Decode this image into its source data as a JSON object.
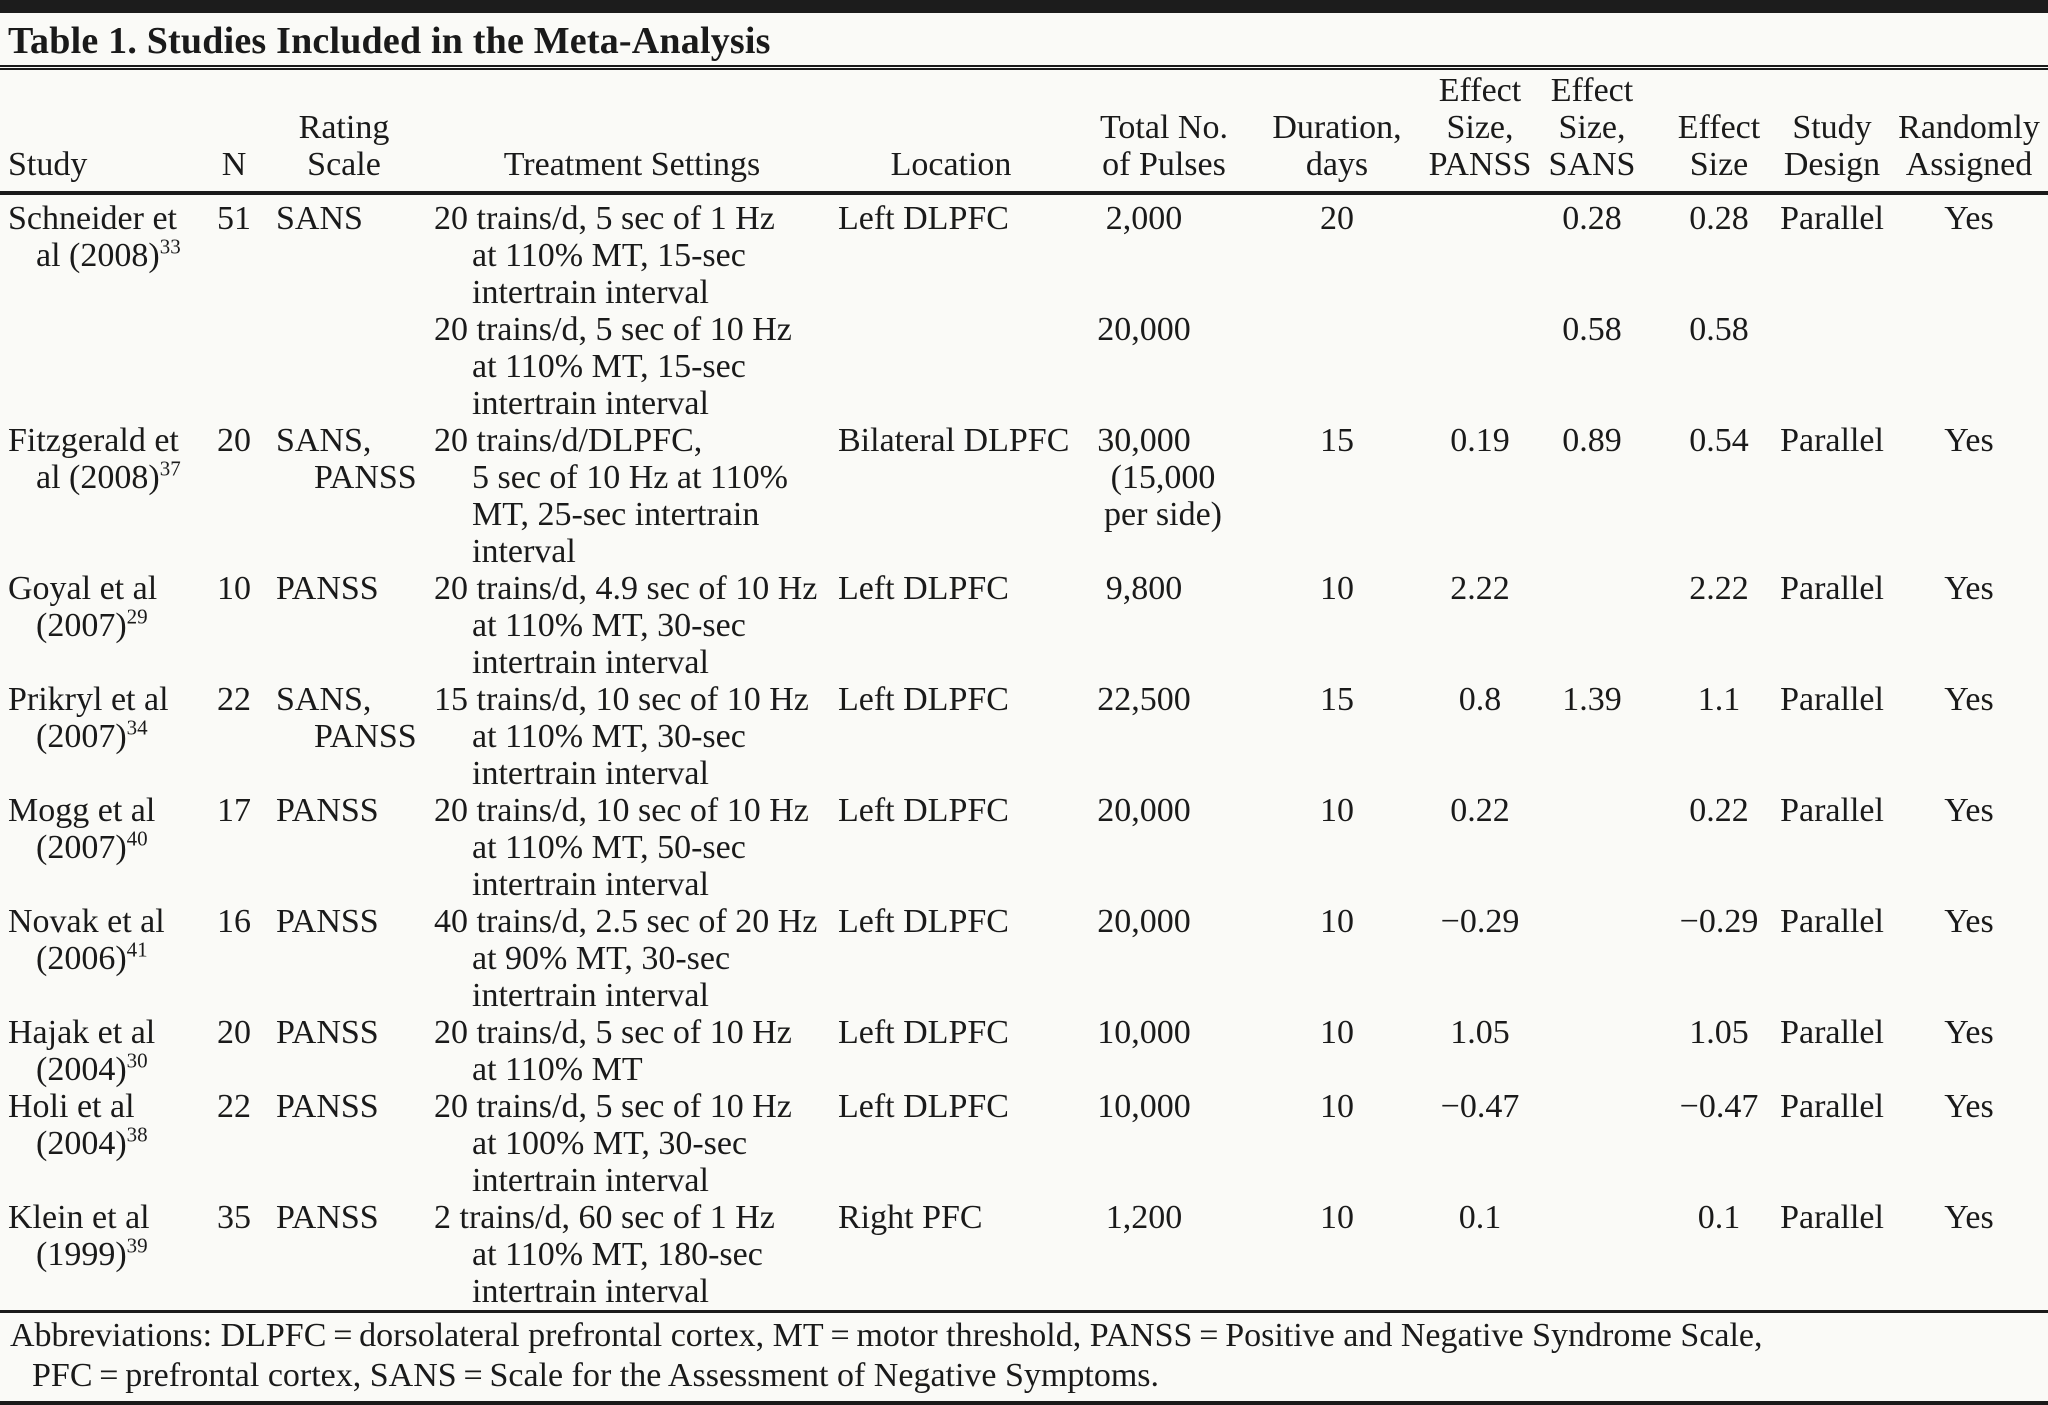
{
  "page": {
    "title": "Table 1. Studies Included in the Meta-Analysis",
    "footnote_lines": [
      "Abbreviations: DLPFC = dorsolateral prefrontal cortex, MT = motor threshold, PANSS = Positive and Negative Syndrome Scale,",
      "PFC = prefrontal cortex, SANS = Scale for the Assessment of Negative Symptoms."
    ]
  },
  "table": {
    "columns": [
      {
        "id": "study",
        "lines": [
          "Study"
        ]
      },
      {
        "id": "n",
        "lines": [
          "N"
        ]
      },
      {
        "id": "rating-scale",
        "lines": [
          "Rating",
          "Scale"
        ]
      },
      {
        "id": "treatment-settings",
        "lines": [
          "Treatment Settings"
        ]
      },
      {
        "id": "location",
        "lines": [
          "Location"
        ]
      },
      {
        "id": "total-pulses",
        "lines": [
          "Total No.",
          "of Pulses"
        ]
      },
      {
        "id": "duration-days",
        "lines": [
          "Duration,",
          "days"
        ]
      },
      {
        "id": "effect-size-panss",
        "lines": [
          "Effect",
          "Size,",
          "PANSS"
        ]
      },
      {
        "id": "effect-size-sans",
        "lines": [
          "Effect",
          "Size,",
          "SANS"
        ]
      },
      {
        "id": "effect-size",
        "lines": [
          "Effect",
          "Size"
        ]
      },
      {
        "id": "study-design",
        "lines": [
          "Study",
          "Design"
        ]
      },
      {
        "id": "randomly-assigned",
        "lines": [
          "Randomly",
          "Assigned"
        ]
      }
    ],
    "rows": [
      {
        "cells": [
          [
            "Schneider et",
            ">al (2008)^33"
          ],
          [
            "51"
          ],
          [
            "SANS"
          ],
          [
            "20 trains/d, 5 sec of 1 Hz",
            ">at 110% MT, 15-sec",
            ">intertrain interval",
            "20 trains/d, 5 sec of 10 Hz",
            ">at 110% MT, 15-sec",
            ">intertrain interval"
          ],
          [
            "Left DLPFC"
          ],
          [
            "2,000",
            "",
            "",
            "20,000"
          ],
          [
            "20"
          ],
          [
            ""
          ],
          [
            "0.28",
            "",
            "",
            "0.58"
          ],
          [
            "0.28",
            "",
            "",
            "0.58"
          ],
          [
            "Parallel"
          ],
          [
            "Yes"
          ]
        ]
      },
      {
        "cells": [
          [
            "Fitzgerald et",
            ">al (2008)^37"
          ],
          [
            "20"
          ],
          [
            "SANS,",
            ">PANSS"
          ],
          [
            "20 trains/d/DLPFC,",
            ">5 sec of 10 Hz at 110%",
            ">MT, 25-sec intertrain",
            ">interval"
          ],
          [
            "Bilateral DLPFC"
          ],
          [
            "30,000",
            ">(15,000",
            ">per side)"
          ],
          [
            "15"
          ],
          [
            "0.19"
          ],
          [
            "0.89"
          ],
          [
            "0.54"
          ],
          [
            "Parallel"
          ],
          [
            "Yes"
          ]
        ]
      },
      {
        "cells": [
          [
            "Goyal et al",
            ">(2007)^29"
          ],
          [
            "10"
          ],
          [
            "PANSS"
          ],
          [
            "20 trains/d, 4.9 sec of 10 Hz",
            ">at 110% MT, 30-sec",
            ">intertrain interval"
          ],
          [
            "Left DLPFC"
          ],
          [
            "9,800"
          ],
          [
            "10"
          ],
          [
            "2.22"
          ],
          [
            ""
          ],
          [
            "2.22"
          ],
          [
            "Parallel"
          ],
          [
            "Yes"
          ]
        ]
      },
      {
        "cells": [
          [
            "Prikryl et al",
            ">(2007)^34"
          ],
          [
            "22"
          ],
          [
            "SANS,",
            ">PANSS"
          ],
          [
            "15 trains/d, 10 sec of 10 Hz",
            ">at 110% MT, 30-sec",
            ">intertrain interval"
          ],
          [
            "Left DLPFC"
          ],
          [
            "22,500"
          ],
          [
            "15"
          ],
          [
            "0.8"
          ],
          [
            "1.39"
          ],
          [
            "1.1"
          ],
          [
            "Parallel"
          ],
          [
            "Yes"
          ]
        ]
      },
      {
        "cells": [
          [
            "Mogg et al",
            ">(2007)^40"
          ],
          [
            "17"
          ],
          [
            "PANSS"
          ],
          [
            "20 trains/d, 10 sec of 10 Hz",
            ">at 110% MT, 50-sec",
            ">intertrain interval"
          ],
          [
            "Left DLPFC"
          ],
          [
            "20,000"
          ],
          [
            "10"
          ],
          [
            "0.22"
          ],
          [
            ""
          ],
          [
            "0.22"
          ],
          [
            "Parallel"
          ],
          [
            "Yes"
          ]
        ]
      },
      {
        "cells": [
          [
            "Novak et al",
            ">(2006)^41"
          ],
          [
            "16"
          ],
          [
            "PANSS"
          ],
          [
            "40 trains/d, 2.5 sec of 20 Hz",
            ">at 90% MT, 30-sec",
            ">intertrain interval"
          ],
          [
            "Left DLPFC"
          ],
          [
            "20,000"
          ],
          [
            "10"
          ],
          [
            "−0.29"
          ],
          [
            ""
          ],
          [
            "−0.29"
          ],
          [
            "Parallel"
          ],
          [
            "Yes"
          ]
        ]
      },
      {
        "cells": [
          [
            "Hajak et al",
            ">(2004)^30"
          ],
          [
            "20"
          ],
          [
            "PANSS"
          ],
          [
            "20 trains/d, 5 sec of 10 Hz",
            ">at 110% MT"
          ],
          [
            "Left DLPFC"
          ],
          [
            "10,000"
          ],
          [
            "10"
          ],
          [
            "1.05"
          ],
          [
            ""
          ],
          [
            "1.05"
          ],
          [
            "Parallel"
          ],
          [
            "Yes"
          ]
        ]
      },
      {
        "cells": [
          [
            "Holi et al",
            ">(2004)^38"
          ],
          [
            "22"
          ],
          [
            "PANSS"
          ],
          [
            "20 trains/d, 5 sec of 10 Hz",
            ">at 100% MT, 30-sec",
            ">intertrain interval"
          ],
          [
            "Left DLPFC"
          ],
          [
            "10,000"
          ],
          [
            "10"
          ],
          [
            "−0.47"
          ],
          [
            ""
          ],
          [
            "−0.47"
          ],
          [
            "Parallel"
          ],
          [
            "Yes"
          ]
        ]
      },
      {
        "cells": [
          [
            "Klein et al",
            ">(1999)^39"
          ],
          [
            "35"
          ],
          [
            "PANSS"
          ],
          [
            "2 trains/d, 60 sec of 1 Hz",
            ">at 110% MT, 180-sec",
            ">intertrain interval"
          ],
          [
            "Right PFC"
          ],
          [
            "1,200"
          ],
          [
            "10"
          ],
          [
            "0.1"
          ],
          [
            ""
          ],
          [
            "0.1"
          ],
          [
            "Parallel"
          ],
          [
            "Yes"
          ]
        ]
      }
    ]
  }
}
